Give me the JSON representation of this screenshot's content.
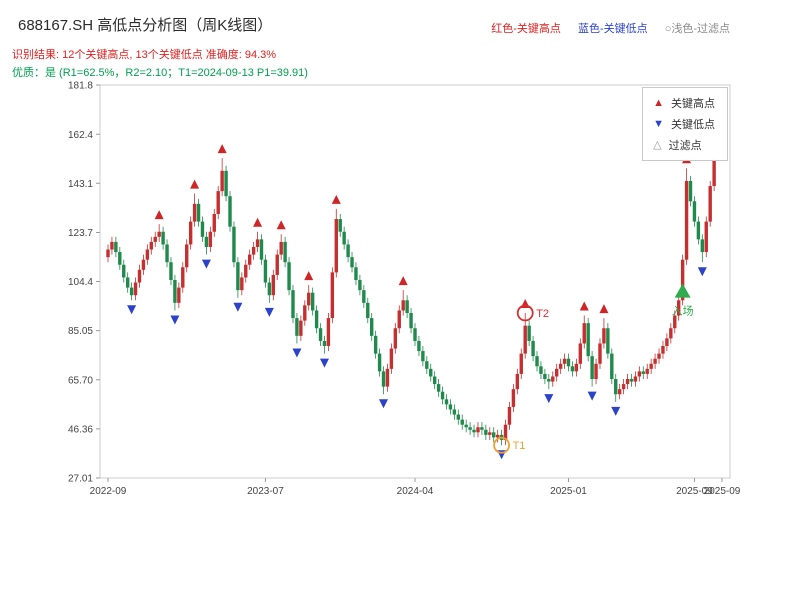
{
  "header": {
    "title": "688167.SH 高低点分析图（周K线图）",
    "legend_top": {
      "high": "红色-关键高点",
      "low": "蓝色-关键低点",
      "filter": "○浅色-过滤点"
    },
    "result_line": "识别结果: 12个关键高点, 13个关键低点  准确度: 94.3%",
    "quality_line": "优质：是 (R1=62.5%，R2=2.10；T1=2024-09-13 P1=39.91)"
  },
  "legend_box": {
    "items": [
      {
        "key": "key-high",
        "glyph": "▲",
        "color": "#cf2526",
        "label": "关键高点"
      },
      {
        "key": "key-low",
        "glyph": "▼",
        "color": "#2c42c8",
        "label": "关键低点"
      },
      {
        "key": "filter",
        "glyph": "△",
        "color": "#9a9a9a",
        "label": "过滤点"
      }
    ]
  },
  "chart_data": {
    "type": "candlestick",
    "title": "688167.SH 高低点分析图（周K线图）",
    "symbol": "688167.SH",
    "freq": "weekly",
    "key_high_count": 12,
    "key_low_count": 13,
    "accuracy": "94.3%",
    "ylim": [
      27.01,
      181.8
    ],
    "y_ticks": [
      "27.01",
      "46.36",
      "65.70",
      "85.05",
      "104.4",
      "123.7",
      "143.1",
      "162.4",
      "181.8"
    ],
    "x_ticks": [
      {
        "index": 0,
        "label": "2022-09"
      },
      {
        "index": 40,
        "label": "2023-07"
      },
      {
        "index": 78,
        "label": "2024-04"
      },
      {
        "index": 117,
        "label": "2025-01"
      },
      {
        "index": 149,
        "label": "2025-09"
      },
      {
        "index": 156,
        "label": "2025-09"
      }
    ],
    "up_color": "#c62f2f",
    "down_color": "#1f8a4c",
    "marker_high_color": "#cf2526",
    "marker_low_color": "#2c42c8",
    "first_open": 114,
    "wick_pad": 2.0,
    "closes": [
      117,
      120,
      116,
      111,
      106,
      102,
      99,
      104,
      109,
      113,
      117,
      120,
      122,
      124,
      119,
      112,
      105,
      96,
      102,
      110,
      119,
      128,
      135,
      128,
      122,
      118,
      124,
      131,
      140,
      148,
      138,
      126,
      112,
      101,
      106,
      111,
      115,
      118,
      121,
      113,
      104,
      99,
      107,
      115,
      120,
      112,
      101,
      90,
      83,
      89,
      95,
      100,
      93,
      86,
      81,
      79,
      90,
      108,
      129,
      124,
      119,
      114,
      110,
      105,
      101,
      96,
      90,
      83,
      76,
      69,
      63,
      70,
      78,
      86,
      93,
      97,
      92,
      86,
      81,
      77,
      73,
      70,
      67,
      64,
      61,
      58,
      56,
      54,
      52,
      50,
      48,
      47,
      46,
      45,
      47,
      46,
      44,
      45,
      43,
      44,
      42,
      48,
      55,
      62,
      68,
      76,
      87,
      81,
      75,
      71,
      68,
      66,
      65,
      67,
      70,
      72,
      74,
      71,
      69,
      72,
      80,
      88,
      75,
      66,
      72,
      80,
      86,
      76,
      66,
      60,
      62,
      64,
      66,
      65,
      67,
      69,
      68,
      70,
      72,
      74,
      76,
      79,
      82,
      86,
      91,
      97,
      113,
      144,
      136,
      128,
      121,
      116,
      128,
      142,
      155,
      166,
      160
    ],
    "key_highs": [
      {
        "index": 13,
        "price": 127
      },
      {
        "index": 22,
        "price": 139
      },
      {
        "index": 29,
        "price": 153
      },
      {
        "index": 38,
        "price": 124
      },
      {
        "index": 44,
        "price": 123
      },
      {
        "index": 51,
        "price": 103
      },
      {
        "index": 58,
        "price": 133
      },
      {
        "index": 75,
        "price": 101
      },
      {
        "index": 106,
        "price": 92
      },
      {
        "index": 121,
        "price": 91
      },
      {
        "index": 126,
        "price": 90
      },
      {
        "index": 147,
        "price": 149
      }
    ],
    "key_lows": [
      {
        "index": 6,
        "price": 97
      },
      {
        "index": 17,
        "price": 93
      },
      {
        "index": 25,
        "price": 115
      },
      {
        "index": 33,
        "price": 98
      },
      {
        "index": 41,
        "price": 96
      },
      {
        "index": 48,
        "price": 80
      },
      {
        "index": 55,
        "price": 76
      },
      {
        "index": 70,
        "price": 60
      },
      {
        "index": 100,
        "price": 39.91
      },
      {
        "index": 112,
        "price": 62
      },
      {
        "index": 123,
        "price": 63
      },
      {
        "index": 129,
        "price": 57
      },
      {
        "index": 151,
        "price": 112
      }
    ],
    "annotations": [
      {
        "type": "circle",
        "index": 100,
        "price": 39.91,
        "color": "#f0a030",
        "label": "T1"
      },
      {
        "type": "circle",
        "index": 106,
        "price": 92,
        "color": "#d43030",
        "label": "T2"
      },
      {
        "type": "entry",
        "index": 146,
        "price": 100,
        "color": "#2eaa4f",
        "label": "入场"
      }
    ]
  }
}
